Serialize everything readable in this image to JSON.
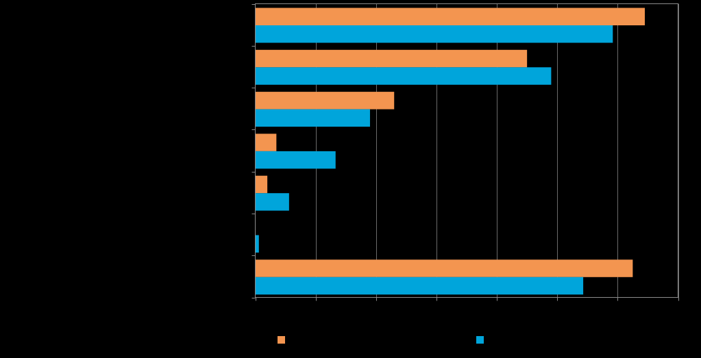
{
  "chart_data": {
    "type": "bar",
    "orientation": "horizontal",
    "categories": [
      "",
      "",
      "",
      "",
      "",
      "",
      ""
    ],
    "series": [
      {
        "color": "#F39550",
        "values": [
          64.5,
          45,
          23,
          3.5,
          2,
          0,
          62.5
        ]
      },
      {
        "color": "#00A5DB",
        "values": [
          59.2,
          49,
          19,
          13.3,
          5.6,
          0.6,
          54.3
        ]
      }
    ],
    "xlim": [
      0,
      70
    ],
    "x_ticks": [
      0,
      10,
      20,
      30,
      40,
      50,
      60,
      70
    ],
    "grid": true,
    "legend_position": "bottom",
    "title": "",
    "xlabel": "",
    "ylabel": ""
  }
}
